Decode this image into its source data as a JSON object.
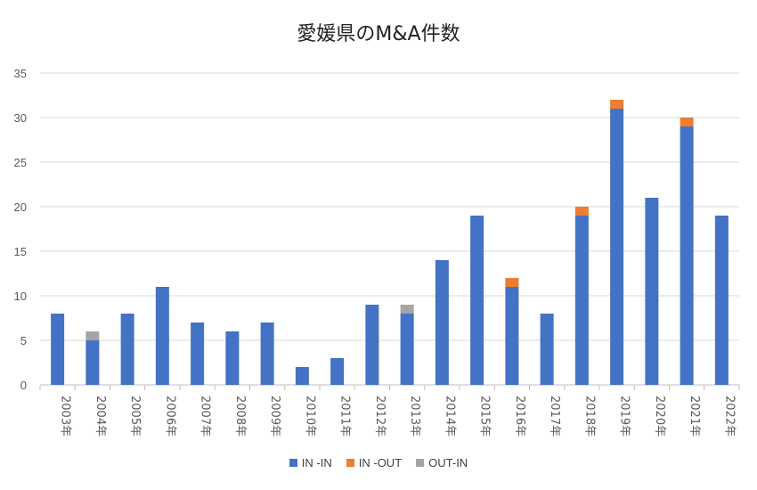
{
  "chart_data": {
    "type": "bar",
    "stacked": true,
    "title": "愛媛県のM&A件数",
    "categories": [
      "2003年",
      "2004年",
      "2005年",
      "2006年",
      "2007年",
      "2008年",
      "2009年",
      "2010年",
      "2011年",
      "2012年",
      "2013年",
      "2014年",
      "2015年",
      "2016年",
      "2017年",
      "2018年",
      "2019年",
      "2020年",
      "2021年",
      "2022年"
    ],
    "series": [
      {
        "name": "IN -IN",
        "color": "#4472C4",
        "values": [
          8,
          5,
          8,
          11,
          7,
          6,
          7,
          2,
          3,
          9,
          8,
          14,
          19,
          11,
          8,
          19,
          31,
          21,
          29,
          19
        ]
      },
      {
        "name": "IN -OUT",
        "color": "#ED7D31",
        "values": [
          0,
          0,
          0,
          0,
          0,
          0,
          0,
          0,
          0,
          0,
          0,
          0,
          0,
          1,
          0,
          1,
          1,
          0,
          1,
          0
        ]
      },
      {
        "name": "OUT-IN",
        "color": "#A5A5A5",
        "values": [
          0,
          1,
          0,
          0,
          0,
          0,
          0,
          0,
          0,
          0,
          1,
          0,
          0,
          0,
          0,
          0,
          0,
          0,
          0,
          0
        ]
      }
    ],
    "ylim": [
      0,
      35
    ],
    "yticks": [
      0,
      5,
      10,
      15,
      20,
      25,
      30,
      35
    ],
    "grid": true,
    "legend_position": "bottom"
  }
}
